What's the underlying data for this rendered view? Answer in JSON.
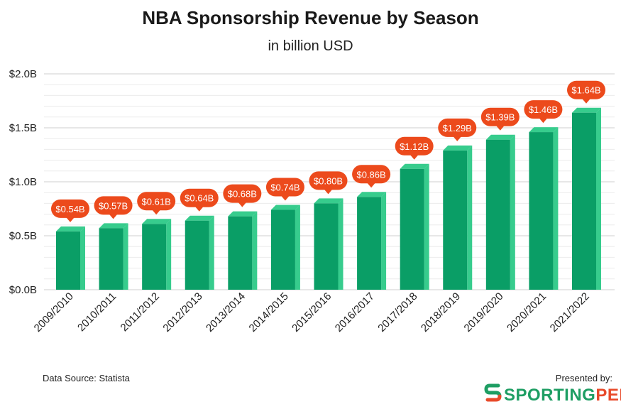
{
  "chart_data": {
    "type": "bar",
    "title": "NBA Sponsorship Revenue by Season",
    "subtitle": "in billion USD",
    "categories": [
      "2009/2010",
      "2010/2011",
      "2011/2012",
      "2012/2013",
      "2013/2014",
      "2014/2015",
      "2015/2016",
      "2016/2017",
      "2017/2018",
      "2018/2019",
      "2019/2020",
      "2020/2021",
      "2021/2022"
    ],
    "values": [
      0.54,
      0.57,
      0.61,
      0.64,
      0.68,
      0.74,
      0.8,
      0.86,
      1.12,
      1.29,
      1.39,
      1.46,
      1.64
    ],
    "data_labels": [
      "$0.54B",
      "$0.57B",
      "$0.61B",
      "$0.64B",
      "$0.68B",
      "$0.74B",
      "$0.80B",
      "$0.86B",
      "$1.12B",
      "$1.29B",
      "$1.39B",
      "$1.46B",
      "$1.64B"
    ],
    "ylim": [
      0,
      2.0
    ],
    "yticks": [
      0,
      0.5,
      1.0,
      1.5,
      2.0
    ],
    "ytick_labels": [
      "$0.0B",
      "$0.5B",
      "$1.0B",
      "$1.5B",
      "$2.0B"
    ],
    "grid": true,
    "colors": {
      "bar_front": "#0a9e66",
      "bar_side": "#37cc8d",
      "label_bg": "#ec4a1c",
      "label_text": "#ffffff",
      "grid": "#dddddd"
    }
  },
  "footer": {
    "source": "Data Source: Statista",
    "presented_by": "Presented by:",
    "logo_part1": "SPORTING",
    "logo_part2": "PEDIA"
  }
}
